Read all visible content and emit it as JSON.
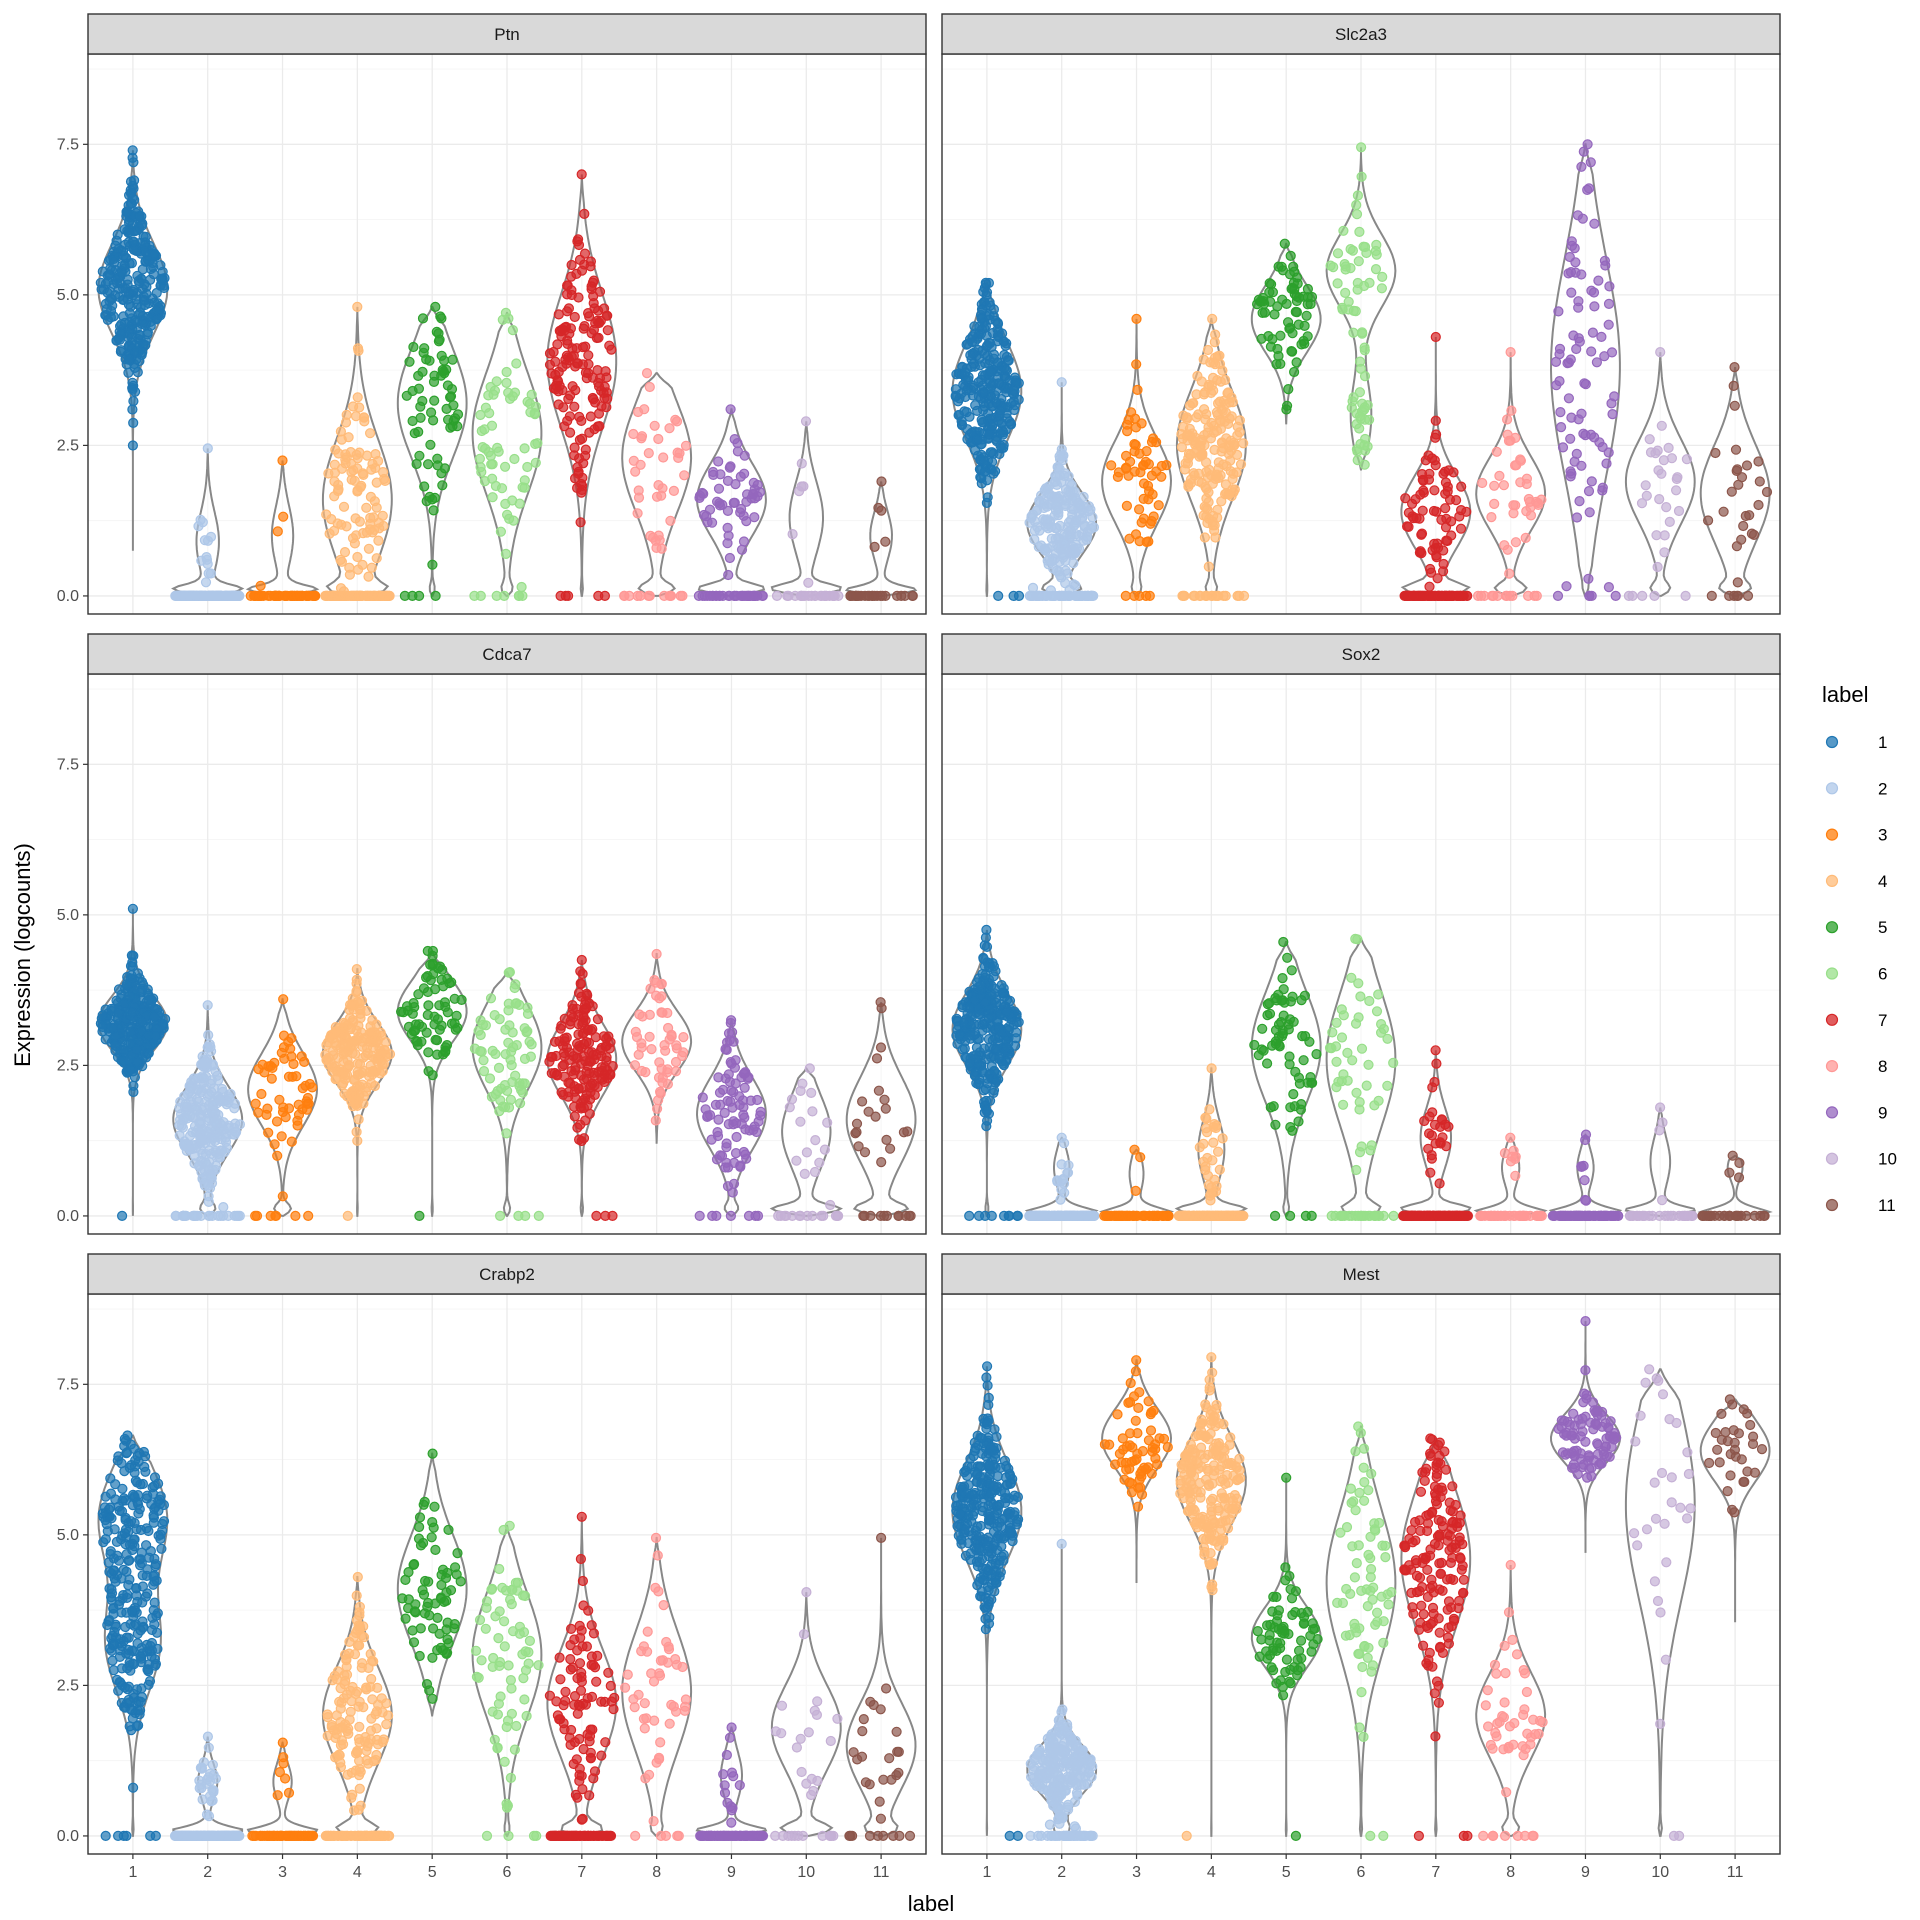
{
  "chart_data": {
    "type": "violin",
    "xlabel": "label",
    "ylabel": "Expression (logcounts)",
    "ylim": [
      -0.3,
      9.0
    ],
    "y_ticks": [
      "0.0",
      "2.5",
      "5.0",
      "7.5"
    ],
    "y_tick_values": [
      0,
      2.5,
      5,
      7.5
    ],
    "categories": [
      "1",
      "2",
      "3",
      "4",
      "5",
      "6",
      "7",
      "8",
      "9",
      "10",
      "11"
    ],
    "legend": {
      "title": "label",
      "placement": "right",
      "entries": [
        "1",
        "2",
        "3",
        "4",
        "5",
        "6",
        "7",
        "8",
        "9",
        "10",
        "11"
      ]
    },
    "colors": [
      "#1f77b4",
      "#aec7e8",
      "#ff7f0e",
      "#ffbb78",
      "#2ca02c",
      "#98df8a",
      "#d62728",
      "#ff9896",
      "#9467bd",
      "#c5b0d5",
      "#8c564b"
    ],
    "panels": [
      {
        "gene": "Ptn",
        "groups": [
          {
            "label": "1",
            "zeros": 0,
            "max": 7.4,
            "modes": [
              [
                5.1,
                0.75,
                1.0
              ]
            ],
            "min": 0.75
          },
          {
            "label": "2",
            "zeros": 0.95,
            "max": 2.45,
            "modes": [
              [
                0.9,
                0.5,
                1.0
              ]
            ],
            "min": 0
          },
          {
            "label": "3",
            "zeros": 0.95,
            "max": 2.25,
            "modes": [
              [
                1.0,
                0.5,
                1.0
              ]
            ],
            "min": 0
          },
          {
            "label": "4",
            "zeros": 0.5,
            "max": 4.8,
            "modes": [
              [
                1.6,
                1.0,
                1.0
              ]
            ],
            "min": 0
          },
          {
            "label": "5",
            "zeros": 0.05,
            "max": 4.8,
            "modes": [
              [
                3.2,
                0.9,
                1.0
              ]
            ],
            "min": 0
          },
          {
            "label": "6",
            "zeros": 0.1,
            "max": 4.7,
            "modes": [
              [
                2.7,
                1.0,
                1.0
              ]
            ],
            "min": 0
          },
          {
            "label": "7",
            "zeros": 0.03,
            "max": 7.0,
            "modes": [
              [
                3.9,
                1.1,
                1.0
              ]
            ],
            "min": 0
          },
          {
            "label": "8",
            "zeros": 0.25,
            "max": 3.7,
            "modes": [
              [
                2.3,
                0.9,
                1.0
              ]
            ],
            "min": 0
          },
          {
            "label": "9",
            "zeros": 0.4,
            "max": 3.1,
            "modes": [
              [
                1.6,
                0.6,
                1.0
              ]
            ],
            "min": 0
          },
          {
            "label": "10",
            "zeros": 0.8,
            "max": 2.9,
            "modes": [
              [
                1.3,
                0.6,
                1.0
              ]
            ],
            "min": 0
          },
          {
            "label": "11",
            "zeros": 0.85,
            "max": 1.9,
            "modes": [
              [
                1.0,
                0.4,
                1.0
              ]
            ],
            "min": 0
          }
        ]
      },
      {
        "gene": "Slc2a3",
        "groups": [
          {
            "label": "1",
            "zeros": 0.01,
            "max": 5.2,
            "modes": [
              [
                3.4,
                0.8,
                1.0
              ]
            ],
            "min": 0
          },
          {
            "label": "2",
            "zeros": 0.25,
            "max": 3.55,
            "modes": [
              [
                1.2,
                0.5,
                1.0
              ]
            ],
            "min": 0
          },
          {
            "label": "3",
            "zeros": 0.08,
            "max": 4.6,
            "modes": [
              [
                1.9,
                0.7,
                1.0
              ]
            ],
            "min": 0
          },
          {
            "label": "4",
            "zeros": 0.1,
            "max": 4.6,
            "modes": [
              [
                2.5,
                0.9,
                1.0
              ]
            ],
            "min": 0
          },
          {
            "label": "5",
            "zeros": 0,
            "max": 5.85,
            "modes": [
              [
                4.6,
                0.55,
                1.0
              ]
            ],
            "min": 2.85
          },
          {
            "label": "6",
            "zeros": 0,
            "max": 7.45,
            "modes": [
              [
                5.4,
                0.6,
                1.0
              ],
              [
                3.0,
                0.6,
                0.3
              ]
            ],
            "min": 2.1
          },
          {
            "label": "7",
            "zeros": 0.55,
            "max": 4.3,
            "modes": [
              [
                1.4,
                0.6,
                1.0
              ]
            ],
            "min": 0
          },
          {
            "label": "8",
            "zeros": 0.25,
            "max": 4.05,
            "modes": [
              [
                1.7,
                0.6,
                1.0
              ]
            ],
            "min": 0
          },
          {
            "label": "9",
            "zeros": 0.05,
            "max": 7.5,
            "modes": [
              [
                3.8,
                1.8,
                1.0
              ]
            ],
            "min": 0
          },
          {
            "label": "10",
            "zeros": 0.15,
            "max": 4.05,
            "modes": [
              [
                1.9,
                0.7,
                1.0
              ]
            ],
            "min": 0
          },
          {
            "label": "11",
            "zeros": 0.2,
            "max": 3.8,
            "modes": [
              [
                1.7,
                0.8,
                1.0
              ]
            ],
            "min": 0
          }
        ]
      },
      {
        "gene": "Cdca7",
        "groups": [
          {
            "label": "1",
            "zeros": 0.003,
            "max": 5.1,
            "modes": [
              [
                3.2,
                0.45,
                1.0
              ]
            ],
            "min": 0
          },
          {
            "label": "2",
            "zeros": 0.1,
            "max": 3.5,
            "modes": [
              [
                1.6,
                0.55,
                1.0
              ]
            ],
            "min": 0
          },
          {
            "label": "3",
            "zeros": 0.12,
            "max": 3.6,
            "modes": [
              [
                2.1,
                0.6,
                1.0
              ]
            ],
            "min": 0
          },
          {
            "label": "4",
            "zeros": 0.005,
            "max": 4.1,
            "modes": [
              [
                2.7,
                0.5,
                1.0
              ]
            ],
            "min": 0
          },
          {
            "label": "5",
            "zeros": 0.01,
            "max": 4.4,
            "modes": [
              [
                3.4,
                0.5,
                1.0
              ]
            ],
            "min": 0
          },
          {
            "label": "6",
            "zeros": 0.05,
            "max": 4.05,
            "modes": [
              [
                2.8,
                0.7,
                1.0
              ]
            ],
            "min": 0
          },
          {
            "label": "7",
            "zeros": 0.02,
            "max": 4.25,
            "modes": [
              [
                2.6,
                0.6,
                1.0
              ]
            ],
            "min": 0
          },
          {
            "label": "8",
            "zeros": 0,
            "max": 4.35,
            "modes": [
              [
                2.9,
                0.5,
                1.0
              ]
            ],
            "min": 1.2
          },
          {
            "label": "9",
            "zeros": 0.08,
            "max": 3.25,
            "modes": [
              [
                1.7,
                0.6,
                1.0
              ]
            ],
            "min": 0
          },
          {
            "label": "10",
            "zeros": 0.45,
            "max": 2.45,
            "modes": [
              [
                1.4,
                0.6,
                1.0
              ]
            ],
            "min": 0
          },
          {
            "label": "11",
            "zeros": 0.35,
            "max": 3.55,
            "modes": [
              [
                1.6,
                0.7,
                1.0
              ]
            ],
            "min": 0
          }
        ]
      },
      {
        "gene": "Sox2",
        "groups": [
          {
            "label": "1",
            "zeros": 0.03,
            "max": 4.75,
            "modes": [
              [
                3.1,
                0.6,
                1.0
              ]
            ],
            "min": 0
          },
          {
            "label": "2",
            "zeros": 0.95,
            "max": 1.3,
            "modes": [
              [
                0.8,
                0.3,
                1.0
              ]
            ],
            "min": 0
          },
          {
            "label": "3",
            "zeros": 0.97,
            "max": 1.1,
            "modes": [
              [
                0.7,
                0.3,
                1.0
              ]
            ],
            "min": 0
          },
          {
            "label": "4",
            "zeros": 0.85,
            "max": 2.45,
            "modes": [
              [
                1.1,
                0.5,
                1.0
              ]
            ],
            "min": 0
          },
          {
            "label": "5",
            "zeros": 0.05,
            "max": 4.55,
            "modes": [
              [
                2.8,
                0.9,
                1.0
              ]
            ],
            "min": 0
          },
          {
            "label": "6",
            "zeros": 0.35,
            "max": 4.6,
            "modes": [
              [
                2.6,
                1.1,
                1.0
              ]
            ],
            "min": 0
          },
          {
            "label": "7",
            "zeros": 0.85,
            "max": 2.75,
            "modes": [
              [
                1.3,
                0.5,
                1.0
              ]
            ],
            "min": 0
          },
          {
            "label": "8",
            "zeros": 0.85,
            "max": 1.3,
            "modes": [
              [
                0.8,
                0.3,
                1.0
              ]
            ],
            "min": 0
          },
          {
            "label": "9",
            "zeros": 0.92,
            "max": 1.35,
            "modes": [
              [
                0.8,
                0.3,
                1.0
              ]
            ],
            "min": 0
          },
          {
            "label": "10",
            "zeros": 0.9,
            "max": 1.8,
            "modes": [
              [
                0.9,
                0.4,
                1.0
              ]
            ],
            "min": 0
          },
          {
            "label": "11",
            "zeros": 0.9,
            "max": 1.0,
            "modes": [
              [
                0.8,
                0.2,
                1.0
              ]
            ],
            "min": 0
          }
        ]
      },
      {
        "gene": "Crabp2",
        "groups": [
          {
            "label": "1",
            "zeros": 0.02,
            "max": 6.65,
            "modes": [
              [
                5.3,
                0.8,
                1.0
              ],
              [
                3.2,
                0.8,
                0.8
              ]
            ],
            "min": 0
          },
          {
            "label": "2",
            "zeros": 0.9,
            "max": 1.65,
            "modes": [
              [
                0.9,
                0.3,
                1.0
              ]
            ],
            "min": 0
          },
          {
            "label": "3",
            "zeros": 0.9,
            "max": 1.55,
            "modes": [
              [
                0.9,
                0.3,
                1.0
              ]
            ],
            "min": 0
          },
          {
            "label": "4",
            "zeros": 0.35,
            "max": 4.3,
            "modes": [
              [
                2.0,
                0.8,
                1.0
              ]
            ],
            "min": 0
          },
          {
            "label": "5",
            "zeros": 0,
            "max": 6.35,
            "modes": [
              [
                4.1,
                0.9,
                1.0
              ]
            ],
            "min": 2.0
          },
          {
            "label": "6",
            "zeros": 0.05,
            "max": 5.15,
            "modes": [
              [
                3.0,
                1.0,
                1.0
              ]
            ],
            "min": 0
          },
          {
            "label": "7",
            "zeros": 0.45,
            "max": 5.3,
            "modes": [
              [
                2.2,
                0.9,
                1.0
              ]
            ],
            "min": 0
          },
          {
            "label": "8",
            "zeros": 0.1,
            "max": 4.95,
            "modes": [
              [
                2.4,
                1.0,
                1.0
              ]
            ],
            "min": 0
          },
          {
            "label": "9",
            "zeros": 0.85,
            "max": 1.8,
            "modes": [
              [
                1.0,
                0.4,
                1.0
              ]
            ],
            "min": 0
          },
          {
            "label": "10",
            "zeros": 0.4,
            "max": 4.05,
            "modes": [
              [
                1.8,
                0.7,
                1.0
              ]
            ],
            "min": 0
          },
          {
            "label": "11",
            "zeros": 0.3,
            "max": 4.95,
            "modes": [
              [
                1.5,
                0.7,
                1.0
              ]
            ],
            "min": 0
          }
        ]
      },
      {
        "gene": "Mest",
        "groups": [
          {
            "label": "1",
            "zeros": 0.005,
            "max": 7.8,
            "modes": [
              [
                5.4,
                0.8,
                1.0
              ]
            ],
            "min": 0
          },
          {
            "label": "2",
            "zeros": 0.15,
            "max": 4.85,
            "modes": [
              [
                1.1,
                0.4,
                1.0
              ]
            ],
            "min": 0
          },
          {
            "label": "3",
            "zeros": 0,
            "max": 7.9,
            "modes": [
              [
                6.6,
                0.5,
                1.0
              ]
            ],
            "min": 4.2
          },
          {
            "label": "4",
            "zeros": 0.005,
            "max": 7.95,
            "modes": [
              [
                5.9,
                0.7,
                1.0
              ]
            ],
            "min": 0
          },
          {
            "label": "5",
            "zeros": 0.01,
            "max": 5.95,
            "modes": [
              [
                3.3,
                0.5,
                1.0
              ]
            ],
            "min": 0
          },
          {
            "label": "6",
            "zeros": 0.03,
            "max": 6.8,
            "modes": [
              [
                4.2,
                1.2,
                1.0
              ]
            ],
            "min": 0
          },
          {
            "label": "7",
            "zeros": 0.02,
            "max": 6.6,
            "modes": [
              [
                4.6,
                1.1,
                1.0
              ]
            ],
            "min": 0
          },
          {
            "label": "8",
            "zeros": 0.15,
            "max": 4.5,
            "modes": [
              [
                2.0,
                0.7,
                1.0
              ]
            ],
            "min": 0
          },
          {
            "label": "9",
            "zeros": 0,
            "max": 8.55,
            "modes": [
              [
                6.6,
                0.4,
                1.0
              ]
            ],
            "min": 4.7
          },
          {
            "label": "10",
            "zeros": 0.05,
            "max": 7.75,
            "modes": [
              [
                5.5,
                1.6,
                1.0
              ]
            ],
            "min": 0
          },
          {
            "label": "11",
            "zeros": 0,
            "max": 7.25,
            "modes": [
              [
                6.4,
                0.5,
                1.0
              ]
            ],
            "min": 3.55
          }
        ]
      }
    ]
  }
}
